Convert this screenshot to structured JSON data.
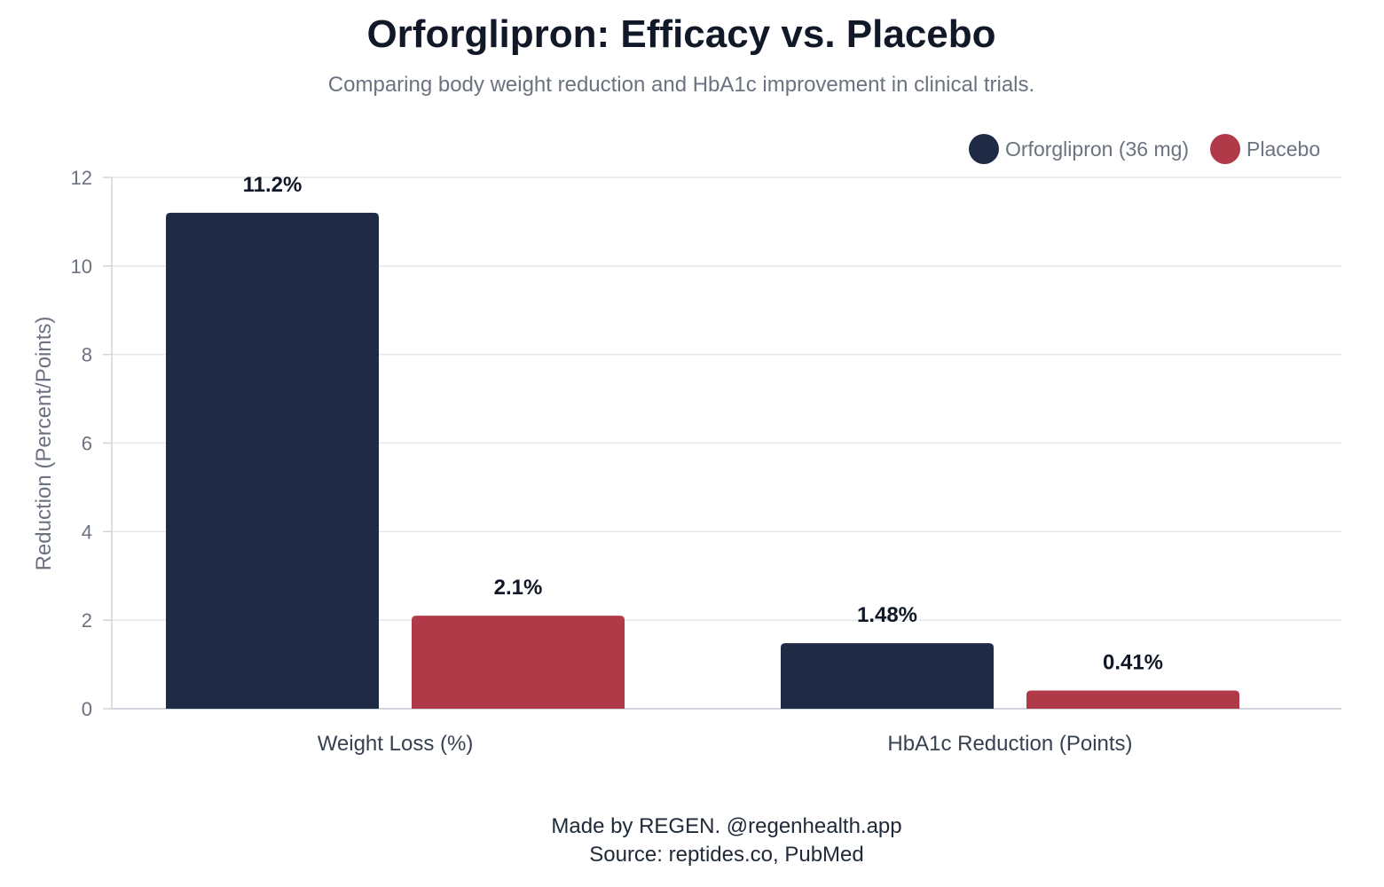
{
  "header": {
    "title": "Orforglipron: Efficacy vs. Placebo",
    "subtitle": "Comparing body weight reduction and HbA1c improvement in clinical trials."
  },
  "footer": {
    "credit": "Made by REGEN. @regenhealth.app",
    "source": "Source: reptides.co, PubMed"
  },
  "chart_data": {
    "type": "bar",
    "categories": [
      "Weight Loss (%)",
      "HbA1c Reduction (Points)"
    ],
    "series": [
      {
        "name": "Orforglipron (36 mg)",
        "color": "#1f2a44",
        "values": [
          11.2,
          1.48
        ],
        "labels": [
          "11.2%",
          "1.48%"
        ]
      },
      {
        "name": "Placebo",
        "color": "#b03a48",
        "values": [
          2.1,
          0.41
        ],
        "labels": [
          "2.1%",
          "0.41%"
        ]
      }
    ],
    "ylabel": "Reduction (Percent/Points)",
    "ylim": [
      0,
      12
    ],
    "yticks": [
      0,
      2,
      4,
      6,
      8,
      10,
      12
    ],
    "grid": true,
    "legend": "top-right"
  }
}
